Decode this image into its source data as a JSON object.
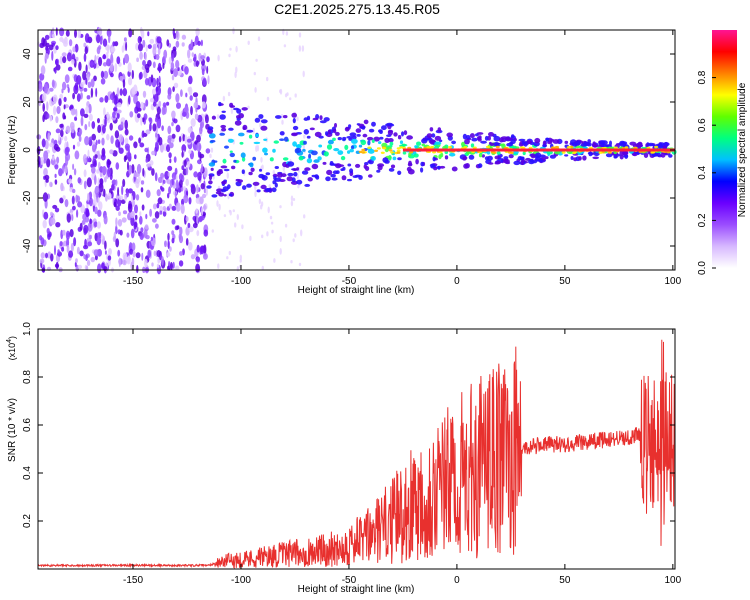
{
  "title": "C2E1.2025.275.13.45.R05",
  "chart_data": [
    {
      "type": "heatmap",
      "name": "spectrogram",
      "xlabel": "Height of straight line (km)",
      "ylabel": "Frequency (Hz)",
      "xlim": [
        -194,
        101
      ],
      "ylim": [
        -50,
        50
      ],
      "xticks": [
        -150,
        -100,
        -50,
        0,
        50,
        100
      ],
      "yticks": [
        -40,
        -20,
        0,
        20,
        40
      ],
      "colorbar": {
        "label": "Normalized spectral amplitude",
        "range": [
          0,
          1
        ],
        "ticks": [
          "0.0",
          "0.2",
          "0.4",
          "0.6",
          "0.8"
        ],
        "colors": [
          "#ffffff",
          "#d7b8ff",
          "#9b4dff",
          "#6a00ff",
          "#0000ff",
          "#00c0ff",
          "#00ff80",
          "#60ff00",
          "#ffff00",
          "#ff8000",
          "#ff0000",
          "#ff1493"
        ]
      },
      "carrier_line": {
        "from_x": -25,
        "to_x": 101,
        "frequency": 0
      },
      "noise_floor_until_x": -115
    },
    {
      "type": "line",
      "name": "snr",
      "xlabel": "Height of straight line (km)",
      "ylabel": "SNR (10 * v/v)",
      "ylabel_scale": "(x10",
      "ylabel_exp": "4",
      "xlim": [
        -194,
        101
      ],
      "ylim": [
        0,
        1.0
      ],
      "xticks": [
        -150,
        -100,
        -50,
        0,
        50,
        100
      ],
      "yticks": [
        "0.2",
        "0.4",
        "0.6",
        "0.8",
        "1.0"
      ],
      "color": "#e8302e",
      "envelope": {
        "x": [
          -194,
          -150,
          -115,
          -110,
          -100,
          -80,
          -60,
          -50,
          -40,
          -30,
          -20,
          -10,
          0,
          10,
          20,
          30,
          40,
          50,
          60,
          70,
          80,
          85,
          90,
          95,
          100
        ],
        "y": [
          0.015,
          0.015,
          0.015,
          0.03,
          0.04,
          0.06,
          0.08,
          0.1,
          0.14,
          0.2,
          0.28,
          0.33,
          0.38,
          0.42,
          0.46,
          0.5,
          0.52,
          0.52,
          0.53,
          0.54,
          0.55,
          0.56,
          0.5,
          0.55,
          0.55
        ]
      }
    }
  ]
}
